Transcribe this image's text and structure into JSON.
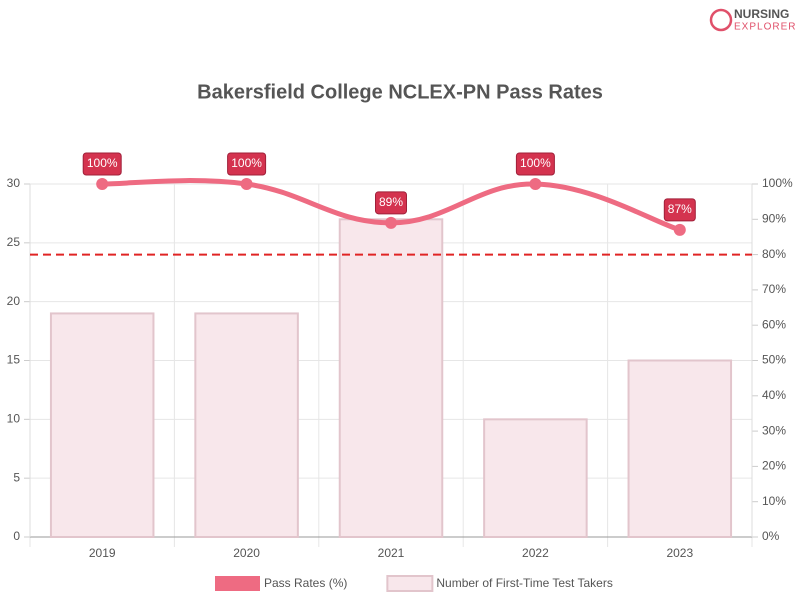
{
  "chart_data": {
    "type": "bar",
    "title": "Bakersfield College NCLEX-PN Pass Rates",
    "brand": [
      "NURSING",
      "EXPLORER"
    ],
    "categories": [
      "2019",
      "2020",
      "2021",
      "2022",
      "2023"
    ],
    "series": [
      {
        "name": "Pass Rates (%)",
        "type": "line",
        "axis": "y2",
        "color": "#ee6b82",
        "label_color": "#d4334f",
        "values": [
          100,
          100,
          89,
          100,
          87
        ],
        "value_labels": [
          "100%",
          "100%",
          "89%",
          "100%",
          "87%"
        ]
      },
      {
        "name": "Number of First-Time Test Takers",
        "type": "bar",
        "color": "#f8e7eb",
        "border": "#e2c5cc",
        "values": [
          19,
          19,
          27,
          10,
          15
        ]
      }
    ],
    "ylim": [
      0,
      30
    ],
    "yticks": [
      0,
      5,
      10,
      15,
      20,
      25,
      30
    ],
    "y2lim": [
      0,
      100
    ],
    "y2ticks": [
      {
        "value": 0,
        "label": "0%"
      },
      {
        "value": 10,
        "label": "10%"
      },
      {
        "value": 20,
        "label": "20%"
      },
      {
        "value": 30,
        "label": "30%"
      },
      {
        "value": 40,
        "label": "40%"
      },
      {
        "value": 50,
        "label": "50%"
      },
      {
        "value": 60,
        "label": "60%"
      },
      {
        "value": 70,
        "label": "70%"
      },
      {
        "value": 80,
        "label": "80%"
      },
      {
        "value": 90,
        "label": "90%"
      },
      {
        "value": 100,
        "label": "100%"
      }
    ],
    "reference_line": {
      "value": 80,
      "axis": "y2",
      "color": "#e02424"
    },
    "grid": true,
    "legend": "bottom"
  }
}
